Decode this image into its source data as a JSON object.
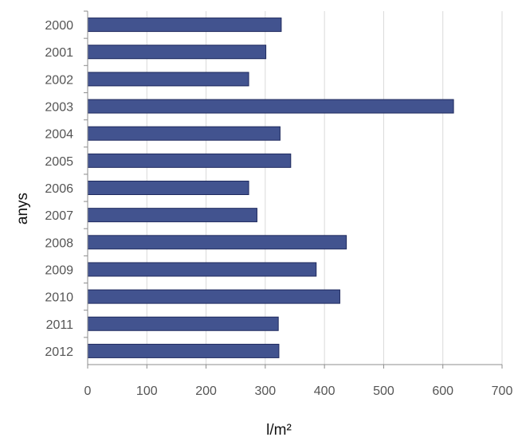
{
  "chart_data": {
    "type": "bar",
    "orientation": "horizontal",
    "title": "",
    "xlabel": "l/m²",
    "ylabel": "anys",
    "categories": [
      "2000",
      "2001",
      "2002",
      "2003",
      "2004",
      "2005",
      "2006",
      "2007",
      "2008",
      "2009",
      "2010",
      "2011",
      "2012"
    ],
    "values": [
      327,
      301,
      272,
      618,
      325,
      343,
      272,
      286,
      437,
      386,
      426,
      322,
      323
    ],
    "xlim": [
      0,
      700
    ],
    "xticks": [
      "0",
      "100",
      "200",
      "300",
      "400",
      "500",
      "600",
      "700"
    ],
    "grid": true,
    "legend": "none",
    "colors": {
      "bar": "#42538f",
      "bar_edge": "#1f2a5e",
      "grid": "#d9d9d9"
    }
  }
}
